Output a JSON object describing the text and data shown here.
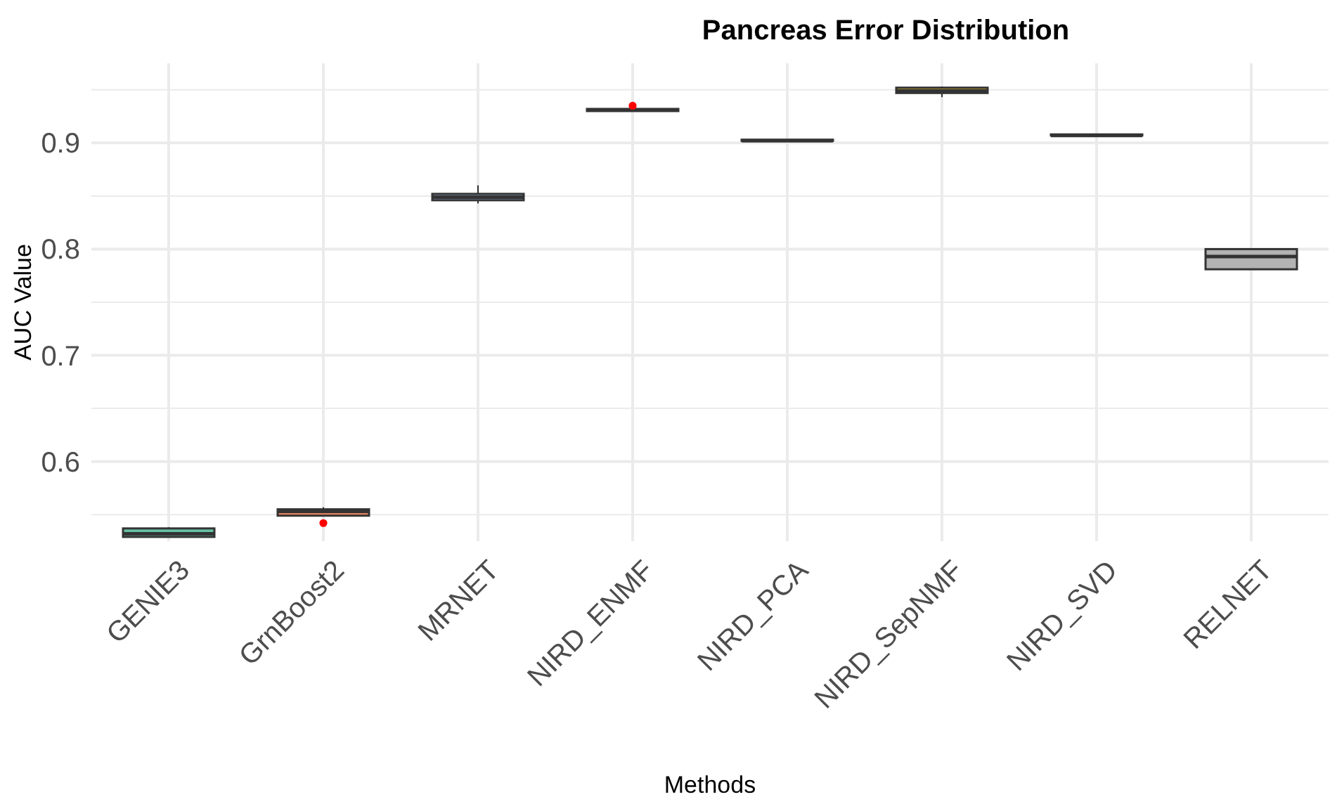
{
  "chart_data": {
    "type": "box",
    "title": "Pancreas Error Distribution",
    "xlabel": "Methods",
    "ylabel": "AUC Value",
    "categories": [
      "GENIE3",
      "GrnBoost2",
      "MRNET",
      "NIRD_ENMF",
      "NIRD_PCA",
      "NIRD_SepNMF",
      "NIRD_SVD",
      "RELNET"
    ],
    "colors": [
      "#66c2a5",
      "#fc8d62",
      "#8da0cb",
      "#e78ac3",
      "#a6d854",
      "#ffd92f",
      "#e5c494",
      "#b3b3b3"
    ],
    "boxes": [
      {
        "low": 0.529,
        "q1": 0.529,
        "median": 0.532,
        "q3": 0.537,
        "high": 0.538
      },
      {
        "low": 0.549,
        "q1": 0.549,
        "median": 0.553,
        "q3": 0.555,
        "high": 0.557,
        "outliers": [
          0.542
        ]
      },
      {
        "low": 0.843,
        "q1": 0.846,
        "median": 0.849,
        "q3": 0.852,
        "high": 0.86
      },
      {
        "low": 0.93,
        "q1": 0.93,
        "median": 0.931,
        "q3": 0.932,
        "high": 0.932,
        "outliers": [
          0.935
        ]
      },
      {
        "low": 0.902,
        "q1": 0.902,
        "median": 0.902,
        "q3": 0.903,
        "high": 0.903
      },
      {
        "low": 0.943,
        "q1": 0.947,
        "median": 0.949,
        "q3": 0.952,
        "high": 0.953
      },
      {
        "low": 0.907,
        "q1": 0.907,
        "median": 0.907,
        "q3": 0.908,
        "high": 0.908
      },
      {
        "low": 0.781,
        "q1": 0.781,
        "median": 0.793,
        "q3": 0.8,
        "high": 0.801
      }
    ],
    "ylim": [
      0.525,
      0.975
    ],
    "yticks": [
      {
        "value": 0.55,
        "label": null
      },
      0.6,
      {
        "value": 0.65,
        "label": null
      },
      0.7,
      {
        "value": 0.75,
        "label": null
      },
      0.8,
      {
        "value": 0.85,
        "label": null
      },
      0.9,
      {
        "value": 0.95,
        "label": null
      }
    ],
    "grid": true
  }
}
